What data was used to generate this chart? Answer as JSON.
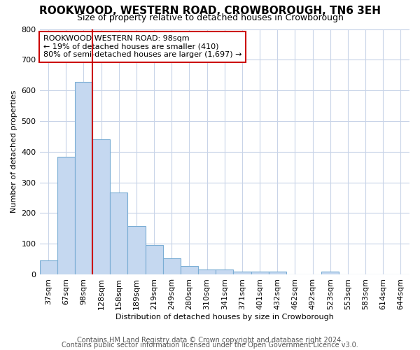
{
  "title": "ROOKWOOD, WESTERN ROAD, CROWBOROUGH, TN6 3EH",
  "subtitle": "Size of property relative to detached houses in Crowborough",
  "xlabel": "Distribution of detached houses by size in Crowborough",
  "ylabel": "Number of detached properties",
  "categories": [
    "37sqm",
    "67sqm",
    "98sqm",
    "128sqm",
    "158sqm",
    "189sqm",
    "219sqm",
    "249sqm",
    "280sqm",
    "310sqm",
    "341sqm",
    "371sqm",
    "401sqm",
    "432sqm",
    "462sqm",
    "492sqm",
    "523sqm",
    "553sqm",
    "583sqm",
    "614sqm",
    "644sqm"
  ],
  "values": [
    46,
    383,
    628,
    440,
    268,
    157,
    95,
    52,
    28,
    16,
    16,
    10,
    10,
    10,
    0,
    0,
    8,
    0,
    0,
    0,
    0
  ],
  "bar_color": "#c5d8f0",
  "bar_edge_color": "#7aadd4",
  "highlight_bar_index": 2,
  "highlight_line_color": "#cc0000",
  "annotation_line1": "ROOKWOOD WESTERN ROAD: 98sqm",
  "annotation_line2": "← 19% of detached houses are smaller (410)",
  "annotation_line3": "80% of semi-detached houses are larger (1,697) →",
  "annotation_box_color": "#cc0000",
  "ylim": [
    0,
    800
  ],
  "yticks": [
    0,
    100,
    200,
    300,
    400,
    500,
    600,
    700,
    800
  ],
  "background_color": "#ffffff",
  "grid_color": "#c8d4e8",
  "footer_line1": "Contains HM Land Registry data © Crown copyright and database right 2024.",
  "footer_line2": "Contains public sector information licensed under the Open Government Licence v3.0.",
  "title_fontsize": 11,
  "subtitle_fontsize": 9,
  "axis_label_fontsize": 8,
  "tick_fontsize": 8,
  "annotation_fontsize": 8,
  "footer_fontsize": 7
}
